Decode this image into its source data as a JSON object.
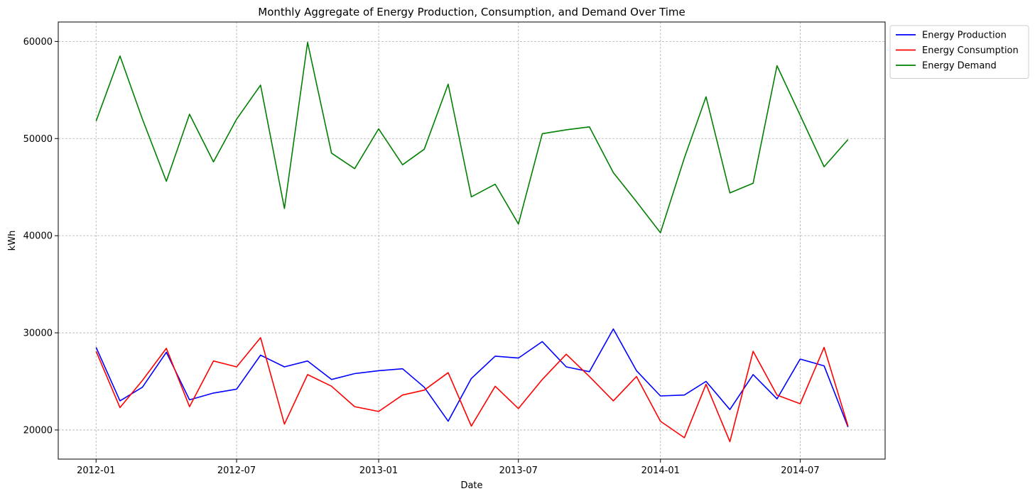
{
  "chart_data": {
    "type": "line",
    "title": "Monthly Aggregate of Energy Production, Consumption, and Demand Over Time",
    "xlabel": "Date",
    "ylabel": "kWh",
    "x": [
      "2012-01",
      "2012-02",
      "2012-03",
      "2012-04",
      "2012-05",
      "2012-06",
      "2012-07",
      "2012-08",
      "2012-09",
      "2012-10",
      "2012-11",
      "2012-12",
      "2013-01",
      "2013-02",
      "2013-03",
      "2013-04",
      "2013-05",
      "2013-06",
      "2013-07",
      "2013-08",
      "2013-09",
      "2013-10",
      "2013-11",
      "2013-12",
      "2014-01",
      "2014-02",
      "2014-03",
      "2014-04",
      "2014-05",
      "2014-06",
      "2014-07",
      "2014-08",
      "2014-09"
    ],
    "xticks": [
      "2012-01",
      "2012-07",
      "2013-01",
      "2013-07",
      "2014-01",
      "2014-07"
    ],
    "xlim": [
      "2011-11-13",
      "2014-10-19"
    ],
    "ylim": [
      17000,
      62000
    ],
    "yticks": [
      20000,
      30000,
      40000,
      50000,
      60000
    ],
    "grid": true,
    "legend_position": "upper-right-outside",
    "series": [
      {
        "name": "Energy Production",
        "color": "#0000ff",
        "values": [
          28500,
          23000,
          24400,
          28000,
          23100,
          23800,
          24200,
          27700,
          26500,
          27100,
          25200,
          25800,
          26100,
          26300,
          24400,
          20900,
          25300,
          27600,
          27400,
          29100,
          26500,
          26000,
          30400,
          26100,
          23500,
          23600,
          25000,
          22100,
          25700,
          23200,
          27300,
          26600,
          20300
        ]
      },
      {
        "name": "Energy Consumption",
        "color": "#ff0000",
        "values": [
          28100,
          22300,
          25100,
          28400,
          22400,
          27100,
          26500,
          29500,
          20600,
          25700,
          24500,
          22400,
          21900,
          23600,
          24100,
          25900,
          20400,
          24500,
          22200,
          25200,
          27800,
          25500,
          23000,
          25500,
          20900,
          19200,
          24700,
          18800,
          28100,
          23600,
          22700,
          28500,
          20400
        ]
      },
      {
        "name": "Energy Demand",
        "color": "#008000",
        "values": [
          51800,
          58500,
          52000,
          45600,
          52500,
          47600,
          52000,
          55500,
          42800,
          59900,
          48500,
          46900,
          51000,
          47300,
          48900,
          55600,
          44000,
          45300,
          41200,
          50500,
          50900,
          51200,
          46500,
          43500,
          40300,
          48000,
          54300,
          44400,
          45400,
          57500,
          52400,
          47100,
          49900
        ]
      }
    ]
  }
}
